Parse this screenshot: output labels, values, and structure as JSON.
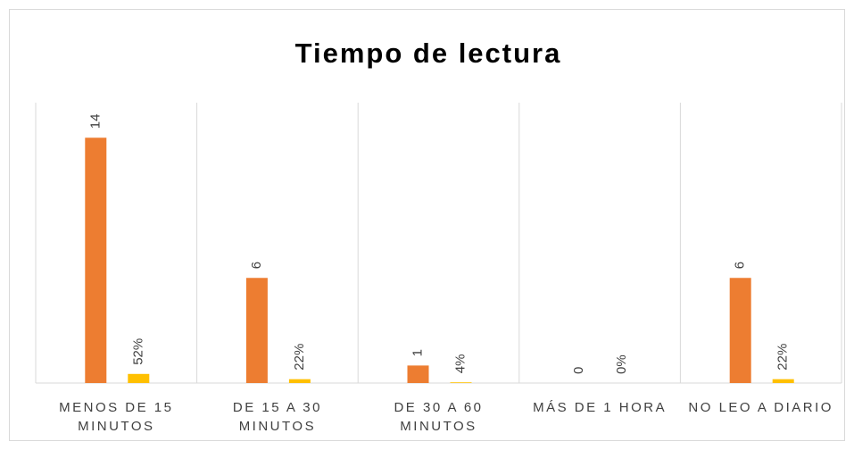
{
  "chart_data": {
    "type": "bar",
    "title": "Tiempo de lectura",
    "categories": [
      "MENOS DE 15 MINUTOS",
      "DE 15 A 30 MINUTOS",
      "DE 30 A 60 MINUTOS",
      "MÁS DE 1 HORA",
      "NO LEO A DIARIO"
    ],
    "series": [
      {
        "color": "#ed7d31",
        "values": [
          14,
          6,
          1,
          0,
          6
        ]
      },
      {
        "color": "#ffc000",
        "values": [
          0.52,
          0.22,
          0.04,
          0,
          0.22
        ],
        "value_labels": [
          "52%",
          "22%",
          "4%",
          "0%",
          "22%"
        ]
      }
    ],
    "ylim": [
      0,
      16
    ]
  }
}
